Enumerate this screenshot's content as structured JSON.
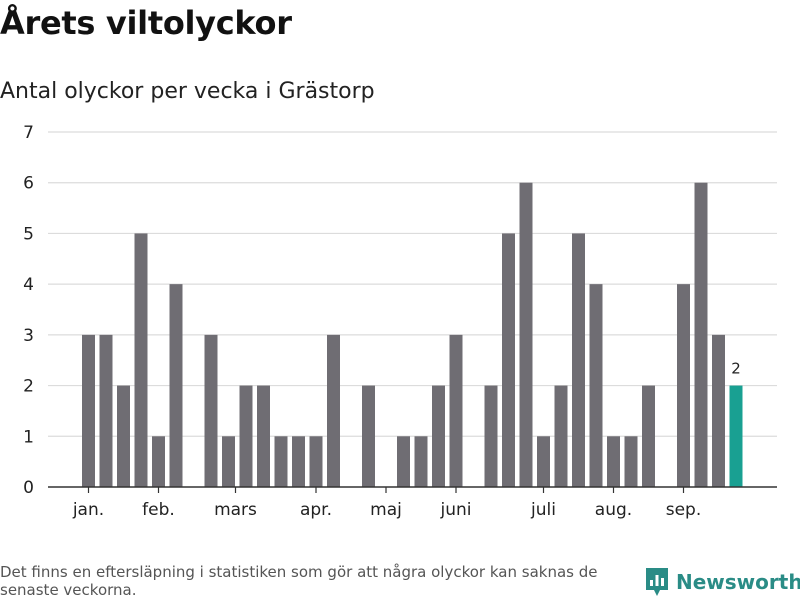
{
  "title": "Årets viltolyckor",
  "subtitle": "Antal olyckor per vecka i Grästorp",
  "footnote": "Det finns en eftersläpning i statistiken som gör att några olyckor kan saknas de senaste veckorna.",
  "brand": {
    "name": "Newsworthy",
    "icon": "newsworthy-logo-icon"
  },
  "colors": {
    "bar": "#6f6d73",
    "highlight": "#19a092",
    "grid": "#dcdcdc",
    "axis": "#333333",
    "text": "#222222"
  },
  "chart_data": {
    "type": "bar",
    "title": "Årets viltolyckor",
    "subtitle": "Antal olyckor per vecka i Grästorp",
    "xlabel": "",
    "ylabel": "",
    "ylim": [
      0,
      7
    ],
    "yticks": [
      0,
      1,
      2,
      3,
      4,
      5,
      6,
      7
    ],
    "grid": true,
    "x_unit": "week",
    "weeks": [
      1,
      2,
      3,
      4,
      5,
      6,
      7,
      8,
      9,
      10,
      11,
      12,
      13,
      14,
      15,
      16,
      17,
      18,
      19,
      20,
      21,
      22,
      23,
      24,
      25,
      26,
      27,
      28,
      29,
      30,
      31,
      32,
      33,
      34,
      35,
      36,
      37,
      38,
      39
    ],
    "values": [
      3,
      3,
      2,
      5,
      1,
      4,
      0,
      3,
      1,
      2,
      2,
      1,
      1,
      1,
      3,
      0,
      2,
      0,
      1,
      1,
      2,
      3,
      0,
      2,
      5,
      6,
      1,
      2,
      5,
      4,
      1,
      1,
      2,
      0,
      4,
      6,
      3,
      2,
      0
    ],
    "highlight_week": 38,
    "highlight_label": "2",
    "month_labels": [
      {
        "label": "jan.",
        "week": 1
      },
      {
        "label": "feb.",
        "week": 5
      },
      {
        "label": "mars",
        "week": 9.4
      },
      {
        "label": "apr.",
        "week": 14
      },
      {
        "label": "maj",
        "week": 18
      },
      {
        "label": "juni",
        "week": 22
      },
      {
        "label": "juli",
        "week": 27
      },
      {
        "label": "aug.",
        "week": 31
      },
      {
        "label": "sep.",
        "week": 35
      }
    ]
  }
}
